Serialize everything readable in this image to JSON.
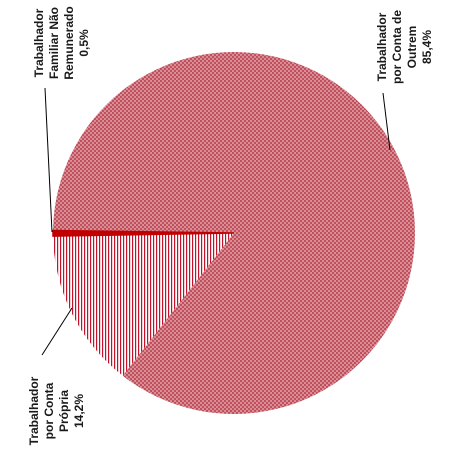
{
  "chart_data": {
    "type": "pie",
    "title": "",
    "slices": [
      {
        "label_lines": [
          "Trabalhador",
          "por Conta de",
          "Outrem"
        ],
        "value_label": "85,4%",
        "value": 85.4,
        "color": "#cc6670",
        "pattern": "checker"
      },
      {
        "label_lines": [
          "Trabalhador",
          "por Conta",
          "Própria"
        ],
        "value_label": "14,2%",
        "value": 14.2,
        "color": "#c3122b",
        "pattern": "vertical-lines"
      },
      {
        "label_lines": [
          "Trabalhador",
          "Familiar Não",
          "Remunerado"
        ],
        "value_label": "0,5%",
        "value": 0.5,
        "color": "#c00000",
        "pattern": "solid"
      }
    ],
    "legend": "none"
  }
}
